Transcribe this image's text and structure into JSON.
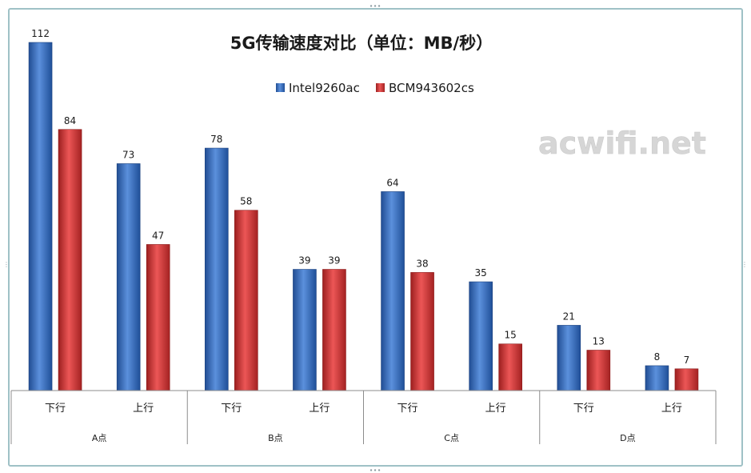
{
  "watermark": "acwifi.net",
  "chart_data": {
    "type": "bar",
    "title": "5G传输速度对比（单位：MB/秒）",
    "categories": [
      "下行",
      "上行",
      "下行",
      "上行",
      "下行",
      "上行",
      "下行",
      "上行"
    ],
    "groups": [
      "A点",
      "B点",
      "C点",
      "D点"
    ],
    "series": [
      {
        "name": "Intel9260ac",
        "values": [
          112,
          73,
          78,
          39,
          64,
          35,
          21,
          8
        ],
        "color": "#3f74c4"
      },
      {
        "name": "BCM943602cs",
        "values": [
          84,
          47,
          58,
          39,
          38,
          15,
          13,
          7
        ],
        "color": "#d63a3a"
      }
    ],
    "ylim": [
      0,
      112
    ],
    "legend_position": "top-center",
    "grid": false
  }
}
